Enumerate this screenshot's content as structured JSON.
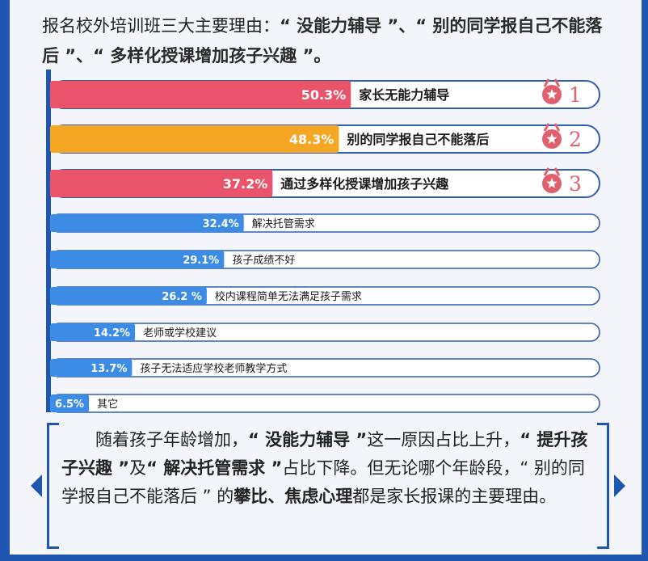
{
  "header": {
    "p1": "报名校外培训班三大主要理由：",
    "q1": "“ 没能力辅导 ”",
    "sep1": "、",
    "q2": "“ 别的同学报自己不能落后 ”",
    "sep2": "、",
    "q3": "“ 多样化授课增加孩子兴趣 ”",
    "end": "。"
  },
  "chart_data": {
    "type": "bar",
    "orientation": "horizontal",
    "title": "",
    "xlabel": "",
    "ylabel": "",
    "xlim": [
      0,
      100
    ],
    "categories": [
      "家长无能力辅导",
      "别的同学报自己不能落后",
      "通过多样化授课增加孩子兴趣",
      "解决托管需求",
      "孩子成绩不好",
      "校内课程简单无法满足孩子需求",
      "老师或学校建议",
      "孩子无法适应学校老师教学方式",
      "其它"
    ],
    "values": [
      50.3,
      48.3,
      37.2,
      32.4,
      29.1,
      26.2,
      14.2,
      13.7,
      6.5
    ],
    "value_labels": [
      "50.3%",
      "48.3%",
      "37.2%",
      "32.4%",
      "29.1%",
      "26.2 %",
      "14.2%",
      "13.7%",
      "6.5%"
    ],
    "ranks": [
      "1",
      "2",
      "3"
    ],
    "colors": {
      "rank1": "#e9546b",
      "rank2": "#f5a623",
      "rank3": "#e9546b",
      "other": "#3c8ce6",
      "outline": "#2f5eb3",
      "axis": "#1f56b0",
      "medal": "#e0606e"
    }
  },
  "note": {
    "t1": "随着孩子年龄增加，",
    "e1": "“ 没能力辅导 ”",
    "t2": "这一原因占比上升，",
    "e2": "“ 提升孩子兴趣 ”",
    "t3": "及",
    "e3": "“ 解决托管需求 ”",
    "t4": "占比下降。但无论哪个年龄段，“ 别的同学报自己不能落后 ” 的",
    "e4": "攀比、焦虑心理",
    "t5": "都是家长报课的主要理由。"
  }
}
